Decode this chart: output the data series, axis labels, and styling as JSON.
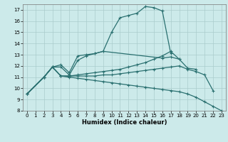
{
  "title": "",
  "xlabel": "Humidex (Indice chaleur)",
  "bg_color": "#cceaea",
  "grid_color": "#aacccc",
  "line_color": "#2a7070",
  "xlim": [
    -0.5,
    23.5
  ],
  "ylim": [
    8,
    17.5
  ],
  "xticks": [
    0,
    1,
    2,
    3,
    4,
    5,
    6,
    7,
    8,
    9,
    10,
    11,
    12,
    13,
    14,
    15,
    16,
    17,
    18,
    19,
    20,
    21,
    22,
    23
  ],
  "yticks": [
    8,
    9,
    10,
    11,
    12,
    13,
    14,
    15,
    16,
    17
  ],
  "series": [
    {
      "x": [
        0,
        2,
        3,
        4,
        5,
        6,
        7,
        8,
        9,
        10,
        11,
        12,
        13,
        14,
        15,
        16,
        17
      ],
      "y": [
        9.5,
        11.0,
        11.9,
        12.1,
        11.4,
        12.9,
        13.0,
        13.1,
        13.3,
        15.0,
        16.3,
        16.5,
        16.7,
        17.3,
        17.2,
        16.9,
        13.1
      ]
    },
    {
      "x": [
        0,
        2,
        3,
        4,
        5,
        6,
        7,
        8,
        9,
        16,
        17,
        18
      ],
      "y": [
        9.5,
        11.0,
        11.9,
        11.9,
        11.2,
        12.5,
        12.9,
        13.1,
        13.3,
        12.7,
        12.8,
        12.6
      ]
    },
    {
      "x": [
        0,
        2,
        3,
        4,
        5,
        6,
        7,
        8,
        9,
        10,
        11,
        12,
        13,
        14,
        15,
        16,
        17,
        18,
        19,
        20,
        21,
        22
      ],
      "y": [
        9.5,
        11.0,
        11.9,
        11.1,
        11.1,
        11.1,
        11.1,
        11.1,
        11.2,
        11.2,
        11.3,
        11.4,
        11.5,
        11.6,
        11.7,
        11.8,
        11.9,
        12.0,
        11.7,
        11.5,
        11.2,
        9.8
      ]
    },
    {
      "x": [
        0,
        2,
        3,
        4,
        5,
        6,
        7,
        8,
        9,
        10,
        11,
        12,
        13,
        14,
        15,
        16,
        17,
        18,
        19,
        20,
        21,
        22,
        23
      ],
      "y": [
        9.5,
        11.0,
        11.9,
        11.1,
        11.0,
        10.9,
        10.8,
        10.7,
        10.6,
        10.5,
        10.4,
        10.3,
        10.2,
        10.1,
        10.0,
        9.9,
        9.8,
        9.7,
        9.5,
        9.2,
        8.8,
        8.4,
        8.0
      ]
    },
    {
      "x": [
        0,
        2,
        3,
        4,
        5,
        6,
        7,
        8,
        9,
        10,
        11,
        12,
        13,
        14,
        15,
        16,
        17,
        18,
        19,
        20
      ],
      "y": [
        9.5,
        11.0,
        11.9,
        11.1,
        11.1,
        11.2,
        11.3,
        11.4,
        11.5,
        11.6,
        11.7,
        11.9,
        12.1,
        12.3,
        12.6,
        12.9,
        13.3,
        12.6,
        11.8,
        11.7
      ]
    }
  ]
}
